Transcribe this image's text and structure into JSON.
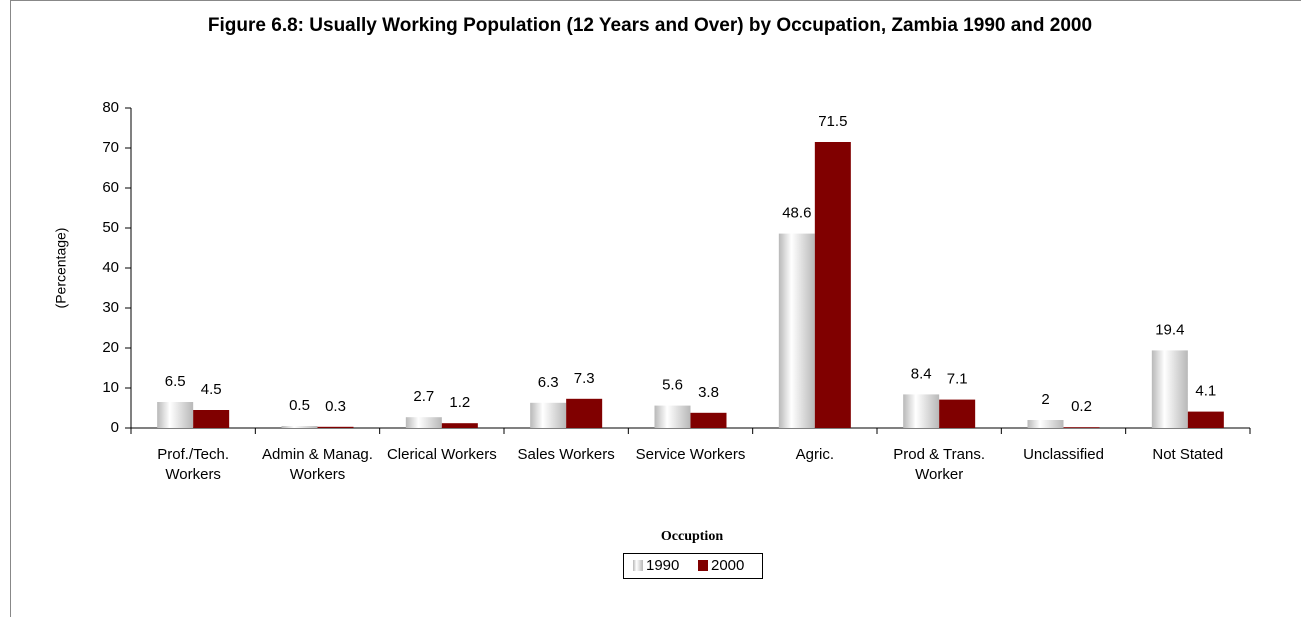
{
  "chart_data": {
    "type": "bar",
    "title": "Figure 6.8: Usually Working Population (12 Years and Over) by Occupation, Zambia 1990 and 2000",
    "x_label": "Occuption",
    "y_label": "(Percentage)",
    "categories": [
      "Prof./Tech. Workers",
      "Admin & Manag. Workers",
      "Clerical Workers",
      "Sales Workers",
      "Service Workers",
      "Agric.",
      "Prod & Trans. Worker",
      "Unclassified",
      "Not Stated"
    ],
    "series": [
      {
        "name": "1990",
        "color": "#b8b8b8",
        "values": [
          6.5,
          0.5,
          2.7,
          6.3,
          5.6,
          48.6,
          8.4,
          2,
          19.4
        ]
      },
      {
        "name": "2000",
        "color": "#800000",
        "values": [
          4.5,
          0.3,
          1.2,
          7.3,
          3.8,
          71.5,
          7.1,
          0.2,
          4.1
        ]
      }
    ],
    "ylim": [
      0,
      80
    ],
    "yticks": [
      0,
      10,
      20,
      30,
      40,
      50,
      60,
      70,
      80
    ],
    "grid": false,
    "legend": "bottom"
  }
}
